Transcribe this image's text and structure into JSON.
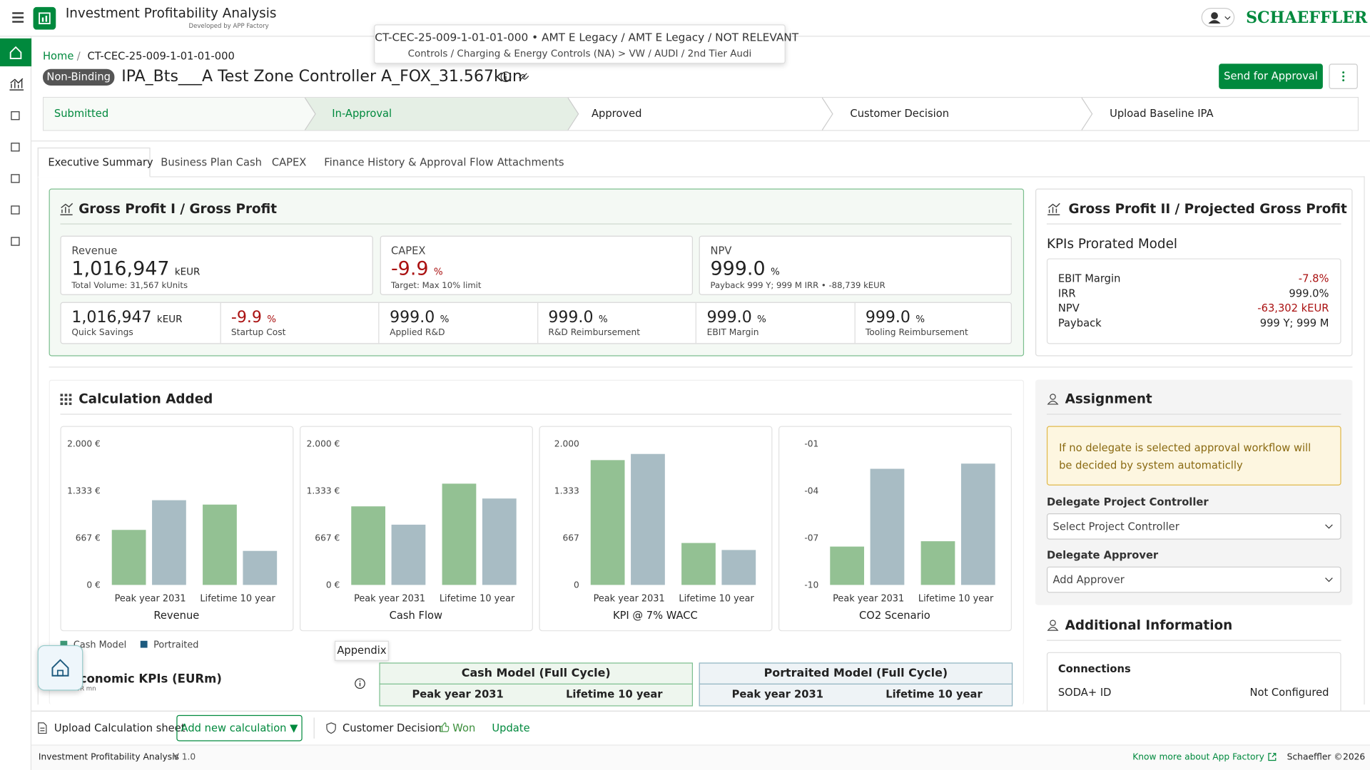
{
  "app": {
    "title": "Investment Profitability Analysis",
    "subtitle": "Developed by APP Factory",
    "brand": "SCHAEFFLER"
  },
  "tooltip": {
    "line1": "CT-CEC-25-009-1-01-01-000 • AMT E Legacy / AMT E Legacy / NOT RELEVANT",
    "line2": "Controls / Charging & Energy Controls (NA) > VW / AUDI / 2nd Tier Audi"
  },
  "breadcrumb": [
    "Home",
    "CT-CEC-25-009-1-01-01-000"
  ],
  "project": {
    "badge": "Non-Binding",
    "name": "IPA_Bts___A Test Zone Controller A_FOX_31.567kun",
    "primary_action": "Send for Approval"
  },
  "steps": [
    "Submitted",
    "In-Approval",
    "Approved",
    "Customer Decision",
    "Upload Baseline IPA"
  ],
  "tabs": [
    "Executive Summary",
    "Business Plan Cash",
    "CAPEX",
    "Finance History & Approval Flow",
    "Attachments"
  ],
  "gross_profit_1": {
    "title": "Gross Profit I / Gross Profit",
    "cards": [
      {
        "label": "Revenue",
        "value": "1,016,947",
        "unit": "kEUR",
        "note": "Total Volume: 31,567 kUnits"
      },
      {
        "label": "CAPEX",
        "value": "-9.9",
        "unit": "%",
        "note": "Target: Max 10% limit"
      },
      {
        "label": "NPV",
        "value": "999.0",
        "unit": "%",
        "note": "Payback 999 Y; 999 M IRR • -88,739 kEUR"
      }
    ],
    "small": [
      {
        "value": "1,016,947",
        "unit": "kEUR",
        "label": "Quick Savings"
      },
      {
        "value": "-9.9",
        "unit": "%",
        "label": "Startup Cost"
      },
      {
        "value": "999.0",
        "unit": "%",
        "label": "Applied R&D"
      },
      {
        "value": "999.0",
        "unit": "%",
        "label": "R&D Reimbursement"
      },
      {
        "value": "999.0",
        "unit": "%",
        "label": "EBIT Margin"
      },
      {
        "value": "999.0",
        "unit": "%",
        "label": "Tooling Reimbursement"
      }
    ]
  },
  "gross_profit_2": {
    "title": "Gross Profit II / Projected Gross Profit",
    "subtitle": "KPIs Prorated Model",
    "rows": [
      [
        "EBIT Margin",
        "-7.8%"
      ],
      [
        "IRR",
        "999.0%"
      ],
      [
        "NPV",
        "-63,302 kEUR"
      ],
      [
        "Payback",
        "999 Y; 999 M"
      ]
    ]
  },
  "calculation": {
    "title": "Calculation Added",
    "charts": [
      {
        "title": "Revenue",
        "ylim": [
          0,
          2000
        ],
        "yticks": [
          {
            "value": 2000,
            "label": "2.000 €"
          },
          {
            "value": 1333,
            "label": "1.333 €"
          },
          {
            "value": 667,
            "label": "667 €"
          },
          {
            "value": 0,
            "label": "0 €"
          }
        ],
        "categories": [
          "Peak year 2031",
          "Lifetime 10 year"
        ],
        "series": [
          {
            "name": "Cash Model",
            "color": "#93c193",
            "values": [
              778,
              1136
            ]
          },
          {
            "name": "Portraited",
            "color": "#a8bcc4",
            "values": [
              1198,
              481
            ]
          }
        ]
      },
      {
        "title": "Cash Flow",
        "ylim": [
          0,
          2000
        ],
        "yticks": [
          {
            "value": 2000,
            "label": "2.000 €"
          },
          {
            "value": 1333,
            "label": "1.333 €"
          },
          {
            "value": 667,
            "label": "667 €"
          },
          {
            "value": 0,
            "label": "0 €"
          }
        ],
        "categories": [
          "Peak year 2031",
          "Lifetime 10 year"
        ],
        "series": [
          {
            "name": "Cash Model",
            "color": "#93c193",
            "values": [
              1111,
              1432
            ]
          },
          {
            "name": "Portraited",
            "color": "#a8bcc4",
            "values": [
              852,
              1222
            ]
          }
        ]
      },
      {
        "title": "KPI @ 7% WACC",
        "ylim": [
          0,
          2000
        ],
        "yticks": [
          {
            "value": 2000,
            "label": "2.000"
          },
          {
            "value": 1333,
            "label": "1.333"
          },
          667,
          0
        ],
        "categories": [
          "Peak year 2031",
          "Lifetime 10 year"
        ],
        "series": [
          {
            "name": "Cash Model",
            "color": "#93c193",
            "values": [
              1765,
              593
            ]
          },
          {
            "name": "Portraited",
            "color": "#a8bcc4",
            "values": [
              1852,
              494
            ]
          }
        ]
      },
      {
        "title": "CO2 Scenario",
        "ylim": [
          -10,
          -1
        ],
        "yticks": [
          {
            "value": -1,
            "label": "-01"
          },
          {
            "value": -4,
            "label": "-04"
          },
          {
            "value": -7,
            "label": "-07"
          },
          -10
        ],
        "categories": [
          "Peak year 2031",
          "Lifetime 10 year"
        ],
        "series": [
          {
            "name": "Cash Model",
            "color": "#93c193",
            "values": [
              -7.56,
              -7.22
            ]
          },
          {
            "name": "Portraited",
            "color": "#a8bcc4",
            "values": [
              -2.61,
              -2.28
            ]
          }
        ]
      }
    ],
    "legend": [
      {
        "name": "Cash Model",
        "color": "#3f9a78"
      },
      {
        "name": "Portraited",
        "color": "#1d5a7e"
      }
    ]
  },
  "economic": {
    "title": "Economic KPIs (EURm)",
    "unit": "EUR mn",
    "tooltip": "Appendix",
    "groups": [
      {
        "title": "Cash Model (Full Cycle)",
        "columns": [
          "Peak year 2031",
          "Lifetime 10 year"
        ]
      },
      {
        "title": "Portraited Model (Full Cycle)",
        "columns": [
          "Peak year 2031",
          "Lifetime 10 year"
        ]
      }
    ]
  },
  "assignment": {
    "title": "Assignment",
    "notice": "If no delegate is selected approval workflow will be decided by system automaticlly",
    "controller_label": "Delegate Project Controller",
    "controller_placeholder": "Select Project Controller",
    "approver_label": "Delegate Approver",
    "approver_placeholder": "Add Approver"
  },
  "additional": {
    "title": "Additional Information",
    "section": "Connections",
    "rows": [
      [
        "SODA+ ID",
        "Not Configured"
      ]
    ]
  },
  "toolbar": {
    "upload": "Upload Calculation sheet",
    "add": "Add new calculation ▼",
    "decision": "Customer Decision",
    "status": "Won",
    "update": "Update"
  },
  "footer": {
    "app": "Investment Profitability Analysis",
    "version": "V 1.0",
    "link": "Know more about App Factory",
    "company": "Schaeffler ©",
    "year": "2026"
  }
}
